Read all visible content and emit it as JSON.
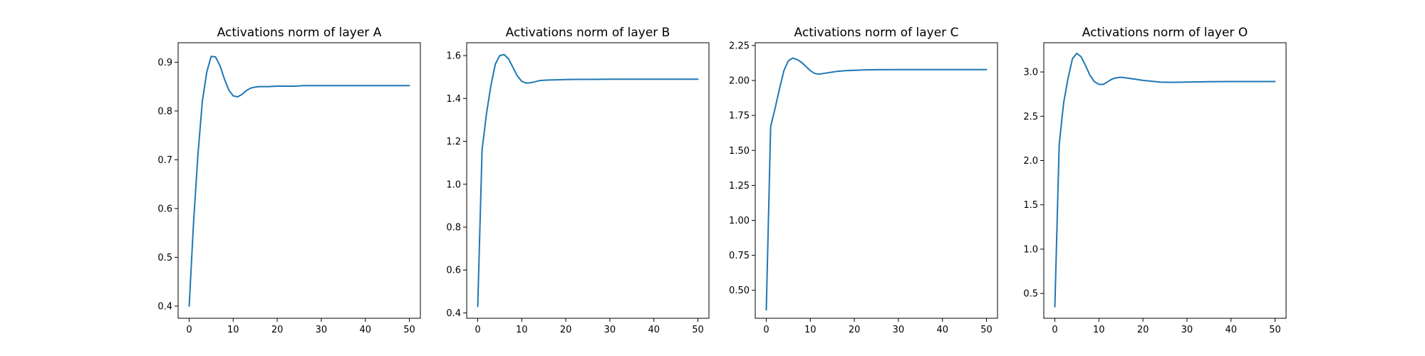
{
  "chart_data": [
    {
      "type": "line",
      "title": "Activations norm of layer A",
      "xlabel": "",
      "ylabel": "",
      "xlim": [
        -2.5,
        52.5
      ],
      "ylim": [
        0.375,
        0.94
      ],
      "xticks": [
        0,
        10,
        20,
        30,
        40,
        50
      ],
      "yticks": [
        0.4,
        0.5,
        0.6,
        0.7,
        0.8,
        0.9
      ],
      "ytick_labels": [
        "0.4",
        "0.5",
        "0.6",
        "0.7",
        "0.8",
        "0.9"
      ],
      "grid": false,
      "color": "#1f77b4",
      "x": [
        0,
        1,
        2,
        3,
        4,
        5,
        6,
        7,
        8,
        9,
        10,
        11,
        12,
        13,
        14,
        15,
        16,
        18,
        20,
        22,
        24,
        26,
        28,
        30,
        35,
        40,
        45,
        50
      ],
      "y": [
        0.4,
        0.57,
        0.71,
        0.82,
        0.88,
        0.912,
        0.911,
        0.893,
        0.866,
        0.843,
        0.831,
        0.829,
        0.834,
        0.842,
        0.847,
        0.849,
        0.85,
        0.85,
        0.851,
        0.851,
        0.851,
        0.852,
        0.852,
        0.852,
        0.852,
        0.852,
        0.852,
        0.852
      ]
    },
    {
      "type": "line",
      "title": "Activations norm of layer B",
      "xlabel": "",
      "ylabel": "",
      "xlim": [
        -2.5,
        52.5
      ],
      "ylim": [
        0.375,
        1.66
      ],
      "xticks": [
        0,
        10,
        20,
        30,
        40,
        50
      ],
      "yticks": [
        0.4,
        0.6,
        0.8,
        1.0,
        1.2,
        1.4,
        1.6
      ],
      "ytick_labels": [
        "0.4",
        "0.6",
        "0.8",
        "1.0",
        "1.2",
        "1.4",
        "1.6"
      ],
      "grid": false,
      "color": "#1f77b4",
      "x": [
        0,
        1,
        2,
        3,
        4,
        5,
        6,
        7,
        8,
        9,
        10,
        11,
        12,
        13,
        14,
        15,
        16,
        18,
        20,
        22,
        25,
        30,
        35,
        40,
        45,
        50
      ],
      "y": [
        0.43,
        1.16,
        1.33,
        1.46,
        1.56,
        1.6,
        1.605,
        1.585,
        1.545,
        1.505,
        1.48,
        1.472,
        1.473,
        1.478,
        1.483,
        1.485,
        1.486,
        1.487,
        1.488,
        1.489,
        1.489,
        1.49,
        1.49,
        1.49,
        1.49,
        1.49
      ]
    },
    {
      "type": "line",
      "title": "Activations norm of layer C",
      "xlabel": "",
      "ylabel": "",
      "xlim": [
        -2.5,
        52.5
      ],
      "ylim": [
        0.3,
        2.27
      ],
      "xticks": [
        0,
        10,
        20,
        30,
        40,
        50
      ],
      "yticks": [
        0.5,
        0.75,
        1.0,
        1.25,
        1.5,
        1.75,
        2.0,
        2.25
      ],
      "ytick_labels": [
        "0.50",
        "0.75",
        "1.00",
        "1.25",
        "1.50",
        "1.75",
        "2.00",
        "2.25"
      ],
      "grid": false,
      "color": "#1f77b4",
      "x": [
        0,
        1,
        2,
        3,
        4,
        5,
        6,
        7,
        8,
        9,
        10,
        11,
        12,
        13,
        14,
        15,
        16,
        18,
        20,
        22,
        25,
        30,
        35,
        40,
        45,
        50
      ],
      "y": [
        0.36,
        1.67,
        1.8,
        1.94,
        2.07,
        2.14,
        2.16,
        2.15,
        2.13,
        2.1,
        2.07,
        2.05,
        2.045,
        2.05,
        2.055,
        2.06,
        2.065,
        2.07,
        2.073,
        2.075,
        2.077,
        2.078,
        2.078,
        2.078,
        2.078,
        2.078
      ]
    },
    {
      "type": "line",
      "title": "Activations norm of layer O",
      "xlabel": "",
      "ylabel": "",
      "xlim": [
        -2.5,
        52.5
      ],
      "ylim": [
        0.22,
        3.33
      ],
      "xticks": [
        0,
        10,
        20,
        30,
        40,
        50
      ],
      "yticks": [
        0.5,
        1.0,
        1.5,
        2.0,
        2.5,
        3.0
      ],
      "ytick_labels": [
        "0.5",
        "1.0",
        "1.5",
        "2.0",
        "2.5",
        "3.0"
      ],
      "grid": false,
      "color": "#1f77b4",
      "x": [
        0,
        1,
        2,
        3,
        4,
        5,
        6,
        7,
        8,
        9,
        10,
        11,
        12,
        13,
        14,
        15,
        16,
        18,
        20,
        22,
        24,
        26,
        28,
        30,
        35,
        40,
        45,
        50
      ],
      "y": [
        0.35,
        2.18,
        2.65,
        2.93,
        3.15,
        3.21,
        3.17,
        3.07,
        2.96,
        2.89,
        2.86,
        2.86,
        2.89,
        2.92,
        2.935,
        2.94,
        2.935,
        2.92,
        2.905,
        2.895,
        2.885,
        2.883,
        2.884,
        2.886,
        2.89,
        2.892,
        2.892,
        2.892
      ]
    }
  ]
}
